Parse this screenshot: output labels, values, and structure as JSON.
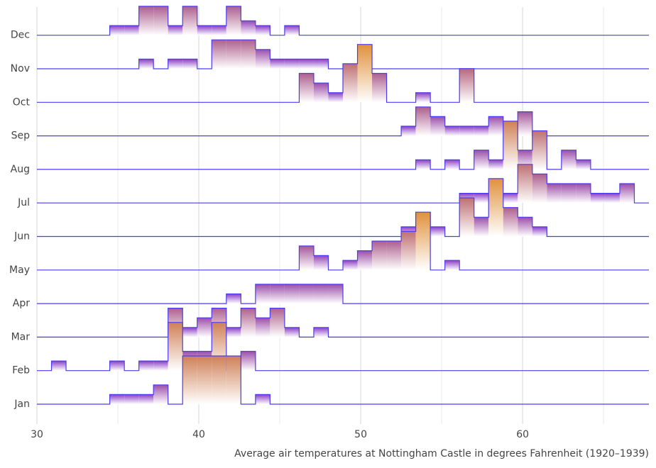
{
  "chart_data": {
    "type": "ridgeline-histogram",
    "x_label": "Average air temperatures at Nottingham Castle in degrees Fahrenheit (1920–1939)",
    "xlim": [
      30,
      67.8
    ],
    "xticks": [
      30,
      40,
      50,
      60
    ],
    "minor_xticks": [
      35,
      45,
      55,
      65
    ],
    "grid": true,
    "line_color": "#4b3cf0",
    "color_low": "#7a2de0",
    "color_high": "#e0913c",
    "bins": [
      30,
      30.9,
      31.8,
      32.7,
      33.6,
      34.5,
      35.4,
      36.3,
      37.2,
      38.1,
      39,
      39.9,
      40.8,
      41.7,
      42.6,
      43.5,
      44.4,
      45.3,
      46.2,
      47.1,
      48,
      48.9,
      49.8,
      50.7,
      51.6,
      52.5,
      53.4,
      54.3,
      55.2,
      56.1,
      57,
      57.9,
      58.8,
      59.7,
      60.6,
      61.5,
      62.4,
      63.3,
      64.2,
      65.1,
      66,
      66.9,
      67.8
    ],
    "series": [
      {
        "name": "Jan",
        "values": [
          0,
          0,
          0,
          0,
          0,
          1,
          1,
          1,
          2,
          0,
          5,
          5,
          5,
          5,
          0,
          1,
          0,
          0,
          0,
          0,
          0,
          0,
          0,
          0,
          0,
          0,
          0,
          0,
          0,
          0,
          0,
          0,
          0,
          0,
          0,
          0,
          0,
          0,
          0,
          0,
          0,
          0
        ]
      },
      {
        "name": "Feb",
        "values": [
          0,
          1,
          0,
          0,
          0,
          1,
          0,
          1,
          1,
          5,
          2,
          2,
          5,
          0,
          2,
          0,
          0,
          0,
          0,
          0,
          0,
          0,
          0,
          0,
          0,
          0,
          0,
          0,
          0,
          0,
          0,
          0,
          0,
          0,
          0,
          0,
          0,
          0,
          0,
          0,
          0,
          0
        ]
      },
      {
        "name": "Mar",
        "values": [
          0,
          0,
          0,
          0,
          0,
          0,
          0,
          0,
          0,
          3,
          1,
          2,
          3,
          1,
          3,
          2,
          3,
          1,
          0,
          1,
          0,
          0,
          0,
          0,
          0,
          0,
          0,
          0,
          0,
          0,
          0,
          0,
          0,
          0,
          0,
          0,
          0,
          0,
          0,
          0,
          0,
          0
        ]
      },
      {
        "name": "Apr",
        "values": [
          0,
          0,
          0,
          0,
          0,
          0,
          0,
          0,
          0,
          0,
          0,
          0,
          0,
          1,
          0,
          2,
          2,
          2,
          2,
          2,
          2,
          0,
          0,
          0,
          0,
          0,
          0,
          0,
          0,
          0,
          0,
          0,
          0,
          0,
          0,
          0,
          0,
          0,
          0,
          0,
          0,
          0
        ]
      },
      {
        "name": "May",
        "values": [
          0,
          0,
          0,
          0,
          0,
          0,
          0,
          0,
          0,
          0,
          0,
          0,
          0,
          0,
          0,
          0,
          0,
          0,
          2.5,
          1.5,
          0,
          1,
          2,
          3,
          3,
          4,
          6,
          0,
          1,
          0,
          0,
          0,
          0,
          0,
          0,
          0,
          0,
          0,
          0,
          0,
          0,
          0
        ]
      },
      {
        "name": "Jun",
        "values": [
          0,
          0,
          0,
          0,
          0,
          0,
          0,
          0,
          0,
          0,
          0,
          0,
          0,
          0,
          0,
          0,
          0,
          0,
          0,
          0,
          0,
          0,
          0,
          0,
          0,
          1,
          2.5,
          1,
          0,
          4,
          2,
          6,
          3,
          2,
          1,
          0,
          0,
          0,
          0,
          0,
          0,
          0
        ]
      },
      {
        "name": "Jul",
        "values": [
          0,
          0,
          0,
          0,
          0,
          0,
          0,
          0,
          0,
          0,
          0,
          0,
          0,
          0,
          0,
          0,
          0,
          0,
          0,
          0,
          0,
          0,
          0,
          0,
          0,
          0,
          0,
          0,
          0,
          1,
          1,
          1,
          1,
          4,
          3,
          2,
          2,
          2,
          1,
          1,
          2,
          0
        ]
      },
      {
        "name": "Aug",
        "values": [
          0,
          0,
          0,
          0,
          0,
          0,
          0,
          0,
          0,
          0,
          0,
          0,
          0,
          0,
          0,
          0,
          0,
          0,
          0,
          0,
          0,
          0,
          0,
          0,
          0,
          0,
          1,
          0,
          1,
          0,
          2,
          1,
          5,
          2,
          4,
          0,
          2,
          1,
          0,
          0,
          0,
          0
        ]
      },
      {
        "name": "Sep",
        "values": [
          0,
          0,
          0,
          0,
          0,
          0,
          0,
          0,
          0,
          0,
          0,
          0,
          0,
          0,
          0,
          0,
          0,
          0,
          0,
          0,
          0,
          0,
          0,
          0,
          0,
          1,
          3,
          2,
          1,
          1,
          1,
          2,
          1,
          2.5,
          0,
          0,
          0,
          0,
          0,
          0,
          0,
          0
        ]
      },
      {
        "name": "Oct",
        "values": [
          0,
          0,
          0,
          0,
          0,
          0,
          0,
          0,
          0,
          0,
          0,
          0,
          0,
          0,
          0,
          0,
          0,
          0,
          3,
          2,
          1,
          4,
          6,
          3,
          0,
          0,
          1,
          0,
          0,
          3.5,
          0,
          0,
          0,
          0,
          0,
          0,
          0,
          0,
          0,
          0,
          0,
          0
        ]
      },
      {
        "name": "Nov",
        "values": [
          0,
          0,
          0,
          0,
          0,
          0,
          0,
          1,
          0,
          1,
          1,
          0,
          3,
          3,
          3,
          2,
          1,
          1,
          1,
          1,
          0,
          0,
          0,
          0,
          0,
          0,
          0,
          0,
          0,
          0,
          0,
          0,
          0,
          0,
          0,
          0,
          0,
          0,
          0,
          0,
          0,
          0
        ]
      },
      {
        "name": "Dec",
        "values": [
          0,
          0,
          0,
          0,
          0,
          1,
          1,
          3,
          3,
          1,
          3,
          1,
          1,
          3,
          1.5,
          1,
          0,
          1,
          0,
          0,
          0,
          0,
          0,
          0,
          0,
          0,
          0,
          0,
          0,
          0,
          0,
          0,
          0,
          0,
          0,
          0,
          0,
          0,
          0,
          0,
          0
        ]
      }
    ]
  }
}
